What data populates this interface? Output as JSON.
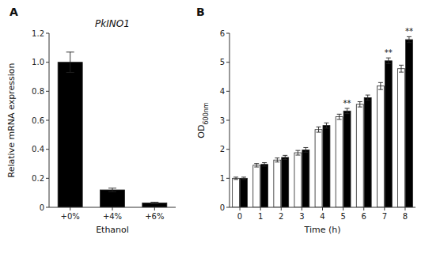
{
  "chart_data": [
    {
      "type": "bar",
      "title": "PkINO1",
      "xlabel": "Ethanol",
      "ylabel": "Relative mRNA expression",
      "categories": [
        "+0%",
        "+4%",
        "+6%"
      ],
      "values": [
        1.0,
        0.12,
        0.03
      ],
      "errors": [
        0.07,
        0.012,
        0.005
      ],
      "color": "black",
      "ylim": [
        0,
        1.2
      ],
      "yticks": [
        0,
        0.2,
        0.4,
        0.6,
        0.8,
        {
          "value": 1.0,
          "label": "1.0"
        },
        1.2
      ],
      "grid": false,
      "annotations": [
        {
          "text": "A"
        }
      ]
    },
    {
      "type": "bar",
      "xlabel": "Time (h)",
      "ylabel": "OD600nm",
      "categories": [
        "0",
        "1",
        "2",
        "3",
        "4",
        "5",
        "6",
        "7",
        "8"
      ],
      "series": [
        {
          "color": "white",
          "values": [
            1.0,
            1.45,
            1.63,
            1.88,
            2.68,
            3.12,
            3.55,
            4.18,
            4.78
          ],
          "errors": [
            0.04,
            0.06,
            0.07,
            0.08,
            0.09,
            0.09,
            0.09,
            0.12,
            0.12
          ]
        },
        {
          "color": "black",
          "values": [
            1.0,
            1.48,
            1.72,
            1.98,
            2.82,
            3.32,
            3.78,
            5.05,
            5.78
          ],
          "errors": [
            0.04,
            0.06,
            0.07,
            0.08,
            0.09,
            0.09,
            0.09,
            0.1,
            0.1
          ]
        }
      ],
      "ylim": [
        0,
        6
      ],
      "yticks": [
        0,
        1,
        2,
        3,
        4,
        5,
        6
      ],
      "grid": false,
      "annotations": [
        {
          "text": "B"
        },
        {
          "text": "**",
          "category": "5",
          "series": 1
        },
        {
          "text": "**",
          "category": "7",
          "series": 1
        },
        {
          "text": "**",
          "category": "8",
          "series": 1
        }
      ]
    }
  ]
}
